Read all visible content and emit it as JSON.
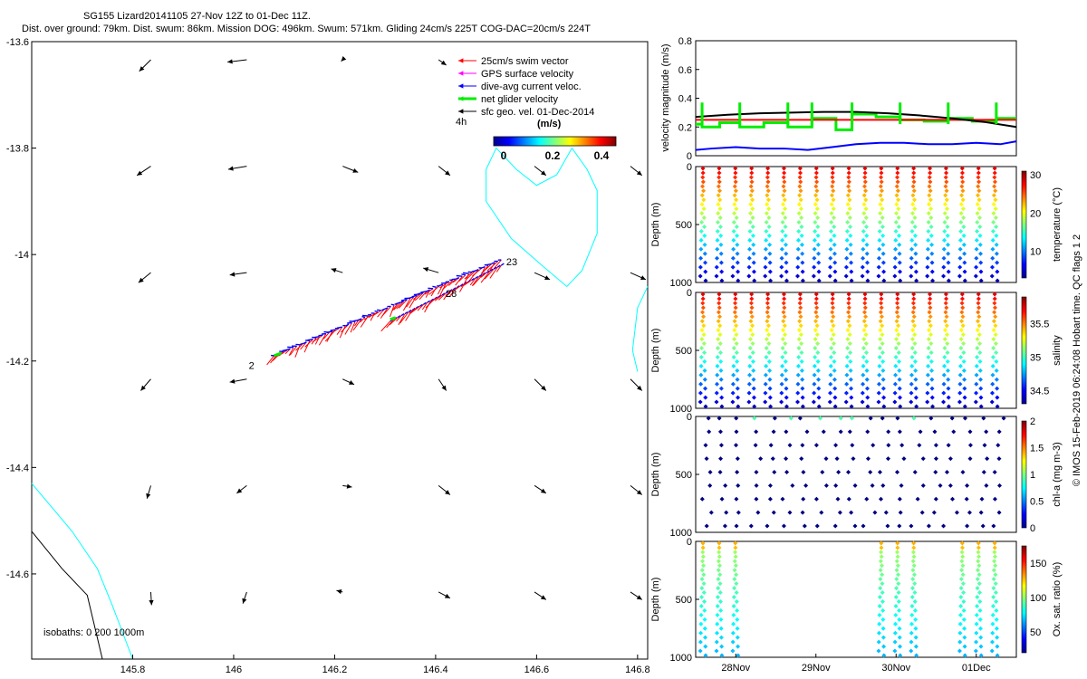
{
  "header": {
    "line1": "SG155 Lizard20141105 27-Nov 12Z to 01-Dec 11Z.",
    "line2": "Dist. over ground: 79km. Dist. swum: 86km. Mission DOG: 496km. Swum: 571km. Gliding 24cm/s 225T COG-DAC=20cm/s 224T"
  },
  "colors": {
    "swim": "#ff0000",
    "gps": "#ff00ff",
    "dac": "#0000ff",
    "net": "#00ee00",
    "sfc": "#000000",
    "isobath0": "#000000",
    "isobath200": "#00ffff"
  },
  "chart_data": [
    {
      "id": "map",
      "type": "scatter",
      "title": "",
      "xlabel": "",
      "ylabel": "",
      "xlim": [
        145.6,
        146.82
      ],
      "ylim": [
        -14.76,
        -13.6
      ],
      "xticks": [
        145.8,
        146,
        146.2,
        146.4,
        146.6,
        146.8
      ],
      "xtick_labels": [
        "145.8",
        "146",
        "146.2",
        "146.4",
        "146.6",
        "146.8"
      ],
      "yticks": [
        -13.6,
        -13.8,
        -14,
        -14.2,
        -14.4,
        -14.6
      ],
      "ytick_labels": [
        "-13.6",
        "-13.8",
        "-14",
        "-14.2",
        "-14.4",
        "-14.6"
      ],
      "legend": [
        {
          "label": "25cm/s swim vector",
          "color_key": "swim"
        },
        {
          "label": "GPS surface velocity",
          "color_key": "gps"
        },
        {
          "label": "dive-avg current veloc.",
          "color_key": "dac"
        },
        {
          "label": "net glider velocity",
          "color_key": "net"
        },
        {
          "label": "sfc geo. vel. 01-Dec-2014",
          "color_key": "sfc"
        }
      ],
      "legend_scale_label": "4h",
      "colorbar": {
        "title": "(m/s)",
        "ticks": [
          "0",
          "0.2",
          "0.4"
        ],
        "range": [
          0,
          0.5
        ]
      },
      "annotations": [
        {
          "text": "2",
          "x": 146.03,
          "y": -14.215
        },
        {
          "text": "28",
          "x": 146.42,
          "y": -14.08
        },
        {
          "text": "23",
          "x": 146.54,
          "y": -14.02
        }
      ],
      "isobath_label": "isobaths: 0   200  1000m",
      "track_start": [
        146.08,
        -14.19
      ],
      "track_mid": [
        146.31,
        -14.115
      ],
      "track_end": [
        146.53,
        -14.01
      ],
      "isobath_0m": [
        [
          145.6,
          -14.52
        ],
        [
          145.66,
          -14.59
        ],
        [
          145.71,
          -14.64
        ],
        [
          145.74,
          -14.76
        ]
      ],
      "isobath_200m": [
        [
          145.6,
          -14.43
        ],
        [
          145.68,
          -14.52
        ],
        [
          145.73,
          -14.59
        ],
        [
          145.76,
          -14.66
        ],
        [
          145.8,
          -14.76
        ]
      ],
      "reef_outline": [
        [
          146.67,
          -13.8
        ],
        [
          146.64,
          -13.85
        ],
        [
          146.6,
          -13.87
        ],
        [
          146.56,
          -13.84
        ],
        [
          146.52,
          -13.8
        ],
        [
          146.5,
          -13.84
        ],
        [
          146.5,
          -13.9
        ],
        [
          146.55,
          -13.97
        ],
        [
          146.61,
          -14.02
        ],
        [
          146.66,
          -14.06
        ],
        [
          146.69,
          -14.03
        ],
        [
          146.72,
          -13.96
        ],
        [
          146.72,
          -13.88
        ],
        [
          146.7,
          -13.84
        ],
        [
          146.67,
          -13.8
        ]
      ],
      "reef_right": [
        [
          146.82,
          -14.06
        ],
        [
          146.8,
          -14.1
        ],
        [
          146.79,
          -14.18
        ],
        [
          146.8,
          -14.22
        ]
      ],
      "sfc_vectors": [
        {
          "lon": 145.8,
          "lat": -13.6,
          "u": -0.15,
          "v": -0.15
        },
        {
          "lon": 145.99,
          "lat": -13.6,
          "u": -0.25,
          "v": -0.03
        },
        {
          "lon": 146.18,
          "lat": -13.6,
          "u": -0.02,
          "v": -0.02
        },
        {
          "lon": 146.37,
          "lat": -13.6,
          "u": 0.1,
          "v": -0.07
        },
        {
          "lon": 145.8,
          "lat": -13.8,
          "u": -0.18,
          "v": -0.12
        },
        {
          "lon": 145.99,
          "lat": -13.8,
          "u": -0.24,
          "v": -0.04
        },
        {
          "lon": 146.18,
          "lat": -13.8,
          "u": 0.2,
          "v": -0.08
        },
        {
          "lon": 146.37,
          "lat": -13.8,
          "u": 0.15,
          "v": -0.12
        },
        {
          "lon": 146.56,
          "lat": -13.8,
          "u": 0.15,
          "v": -0.12
        },
        {
          "lon": 146.75,
          "lat": -13.8,
          "u": 0.15,
          "v": -0.12
        },
        {
          "lon": 145.8,
          "lat": -14.0,
          "u": -0.16,
          "v": -0.13
        },
        {
          "lon": 145.99,
          "lat": -14.0,
          "u": -0.22,
          "v": -0.03
        },
        {
          "lon": 146.18,
          "lat": -14.0,
          "u": -0.15,
          "v": 0.05
        },
        {
          "lon": 146.37,
          "lat": -14.0,
          "u": -0.2,
          "v": 0.06
        },
        {
          "lon": 146.56,
          "lat": -14.0,
          "u": 0.2,
          "v": -0.09
        },
        {
          "lon": 146.75,
          "lat": -14.0,
          "u": 0.2,
          "v": -0.09
        },
        {
          "lon": 145.8,
          "lat": -14.2,
          "u": -0.13,
          "v": -0.15
        },
        {
          "lon": 145.99,
          "lat": -14.2,
          "u": -0.22,
          "v": -0.04
        },
        {
          "lon": 146.18,
          "lat": -14.2,
          "u": 0.15,
          "v": -0.07
        },
        {
          "lon": 146.37,
          "lat": -14.2,
          "u": 0.1,
          "v": -0.15
        },
        {
          "lon": 146.56,
          "lat": -14.2,
          "u": 0.15,
          "v": -0.15
        },
        {
          "lon": 146.75,
          "lat": -14.2,
          "u": 0.15,
          "v": -0.15
        },
        {
          "lon": 145.8,
          "lat": -14.4,
          "u": -0.05,
          "v": -0.17
        },
        {
          "lon": 145.99,
          "lat": -14.4,
          "u": -0.13,
          "v": -0.1
        },
        {
          "lon": 146.18,
          "lat": -14.4,
          "u": 0.12,
          "v": -0.02
        },
        {
          "lon": 146.37,
          "lat": -14.4,
          "u": 0.15,
          "v": -0.12
        },
        {
          "lon": 146.56,
          "lat": -14.4,
          "u": 0.15,
          "v": -0.1
        },
        {
          "lon": 146.75,
          "lat": -14.4,
          "u": 0.15,
          "v": -0.12
        },
        {
          "lon": 145.8,
          "lat": -14.6,
          "u": 0.01,
          "v": -0.17
        },
        {
          "lon": 145.99,
          "lat": -14.6,
          "u": -0.05,
          "v": -0.15
        },
        {
          "lon": 146.18,
          "lat": -14.6,
          "u": -0.08,
          "v": 0.02
        },
        {
          "lon": 146.37,
          "lat": -14.6,
          "u": 0.15,
          "v": -0.08
        },
        {
          "lon": 146.56,
          "lat": -14.6,
          "u": 0.15,
          "v": -0.1
        },
        {
          "lon": 146.75,
          "lat": -14.6,
          "u": 0.15,
          "v": -0.1
        }
      ]
    },
    {
      "id": "velocity",
      "type": "line",
      "title": "",
      "xlabel": "",
      "ylabel": "velocity magnitude (m/s)",
      "xlim": [
        0,
        4
      ],
      "ylim": [
        0,
        0.8
      ],
      "yticks": [
        0,
        0.2,
        0.4,
        0.6,
        0.8
      ],
      "ytick_labels": [
        "0",
        "0.2",
        "0.4",
        "0.6",
        "0.8"
      ],
      "series": [
        {
          "name": "net glider velocity",
          "color_key": "net",
          "x": [
            0,
            0.08,
            0.08,
            0.3,
            0.3,
            0.55,
            0.55,
            0.85,
            0.85,
            1.15,
            1.15,
            1.45,
            1.45,
            1.75,
            1.75,
            1.95,
            1.95,
            2.25,
            2.25,
            2.55,
            2.55,
            2.85,
            2.85,
            3.15,
            3.15,
            3.45,
            3.45,
            3.75,
            3.75,
            4.0
          ],
          "y": [
            0.22,
            0.22,
            0.2,
            0.2,
            0.23,
            0.23,
            0.2,
            0.2,
            0.23,
            0.23,
            0.2,
            0.2,
            0.26,
            0.26,
            0.18,
            0.18,
            0.29,
            0.29,
            0.27,
            0.27,
            0.25,
            0.25,
            0.24,
            0.24,
            0.26,
            0.26,
            0.24,
            0.24,
            0.26,
            0.26
          ]
        },
        {
          "name": "swim",
          "color_key": "swim",
          "x": [
            0,
            4
          ],
          "y": [
            0.25,
            0.25
          ]
        },
        {
          "name": "sfc geo. vel.",
          "color_key": "sfc",
          "x": [
            0,
            0.4,
            0.8,
            1.2,
            1.6,
            2.0,
            2.4,
            2.8,
            3.2,
            3.6,
            4.0
          ],
          "y": [
            0.27,
            0.285,
            0.295,
            0.3,
            0.305,
            0.305,
            0.295,
            0.28,
            0.26,
            0.235,
            0.2
          ]
        },
        {
          "name": "dive-avg current",
          "color_key": "dac",
          "x": [
            0,
            0.2,
            0.5,
            0.8,
            1.1,
            1.4,
            1.7,
            2.0,
            2.3,
            2.6,
            2.9,
            3.2,
            3.5,
            3.8,
            4.0
          ],
          "y": [
            0.04,
            0.05,
            0.06,
            0.05,
            0.05,
            0.04,
            0.06,
            0.08,
            0.09,
            0.09,
            0.08,
            0.08,
            0.09,
            0.08,
            0.1
          ]
        }
      ],
      "spikes_x": [
        0.08,
        0.55,
        1.15,
        1.45,
        1.95,
        2.55,
        3.15,
        3.75
      ]
    },
    {
      "id": "temperature",
      "type": "scatter",
      "ylabel": "Depth (m)",
      "clabel": "temperature (°C)",
      "ylim": [
        1000,
        0
      ],
      "yticks": [
        0,
        500,
        1000
      ],
      "ytick_labels": [
        "0",
        "500",
        "1000"
      ],
      "clim": [
        3,
        31
      ],
      "cticks": [
        10,
        20,
        30
      ],
      "ctick_labels": [
        "10",
        "20",
        "30"
      ],
      "profile": "full",
      "dives": 19
    },
    {
      "id": "salinity",
      "type": "scatter",
      "ylabel": "Depth (m)",
      "clabel": "salinity",
      "ylim": [
        1000,
        0
      ],
      "yticks": [
        0,
        500,
        1000
      ],
      "ytick_labels": [
        "0",
        "500",
        "1000"
      ],
      "clim": [
        34.3,
        35.9
      ],
      "cticks": [
        34.5,
        35,
        35.5
      ],
      "ctick_labels": [
        "34.5",
        "35",
        "35.5"
      ],
      "profile": "full",
      "dives": 19
    },
    {
      "id": "chla",
      "type": "scatter",
      "ylabel": "Depth (m)",
      "clabel": "chl-a (mg m-3)",
      "ylim": [
        1000,
        0
      ],
      "yticks": [
        0,
        500,
        1000
      ],
      "ytick_labels": [
        "0",
        "500",
        "1000"
      ],
      "clim": [
        0,
        2
      ],
      "cticks": [
        0,
        0.5,
        1,
        1.5,
        2
      ],
      "ctick_labels": [
        "0",
        "0.5",
        "1",
        "1.5",
        "2"
      ],
      "profile": "sparse",
      "dives": 19
    },
    {
      "id": "oxygen",
      "type": "scatter",
      "ylabel": "Depth (m)",
      "clabel": "Ox. sat. ratio (%)",
      "ylim": [
        1000,
        0
      ],
      "yticks": [
        0,
        500,
        1000
      ],
      "ytick_labels": [
        "0",
        "500",
        "1000"
      ],
      "clim": [
        20,
        175
      ],
      "cticks": [
        50,
        100,
        150
      ],
      "ctick_labels": [
        "50",
        "100",
        "150"
      ],
      "profile": "gaps",
      "dives": 19,
      "xticks": [
        0.5,
        1.5,
        2.5,
        3.5
      ],
      "xtick_labels": [
        "28Nov",
        "29Nov",
        "30Nov",
        "01Dec"
      ]
    }
  ],
  "footer": {
    "credit": "© IMOS 15-Feb-2019 06:24:08 Hobart time. QC flags 1  2"
  }
}
